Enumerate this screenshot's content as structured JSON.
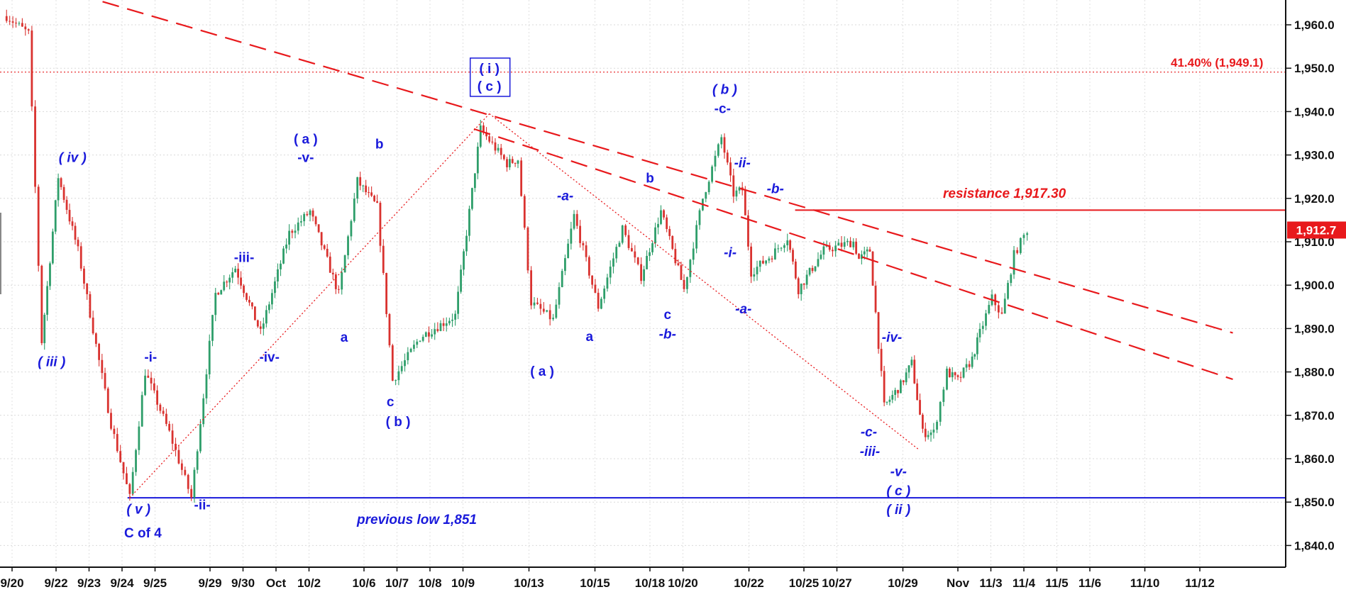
{
  "chart_data": {
    "type": "candlestick",
    "title": "",
    "xlabel": "",
    "ylabel": "",
    "ylim": [
      1835,
      1967
    ],
    "grid": true,
    "y_ticks": [
      1840,
      1850,
      1860,
      1870,
      1880,
      1890,
      1900,
      1910,
      1920,
      1930,
      1940,
      1950,
      1960
    ],
    "y_tick_labels": [
      "1,840.0",
      "1,850.0",
      "1,860.0",
      "1,870.0",
      "1,880.0",
      "1,890.0",
      "1,900.0",
      "1,910.0",
      "1,920.0",
      "1,930.0",
      "1,940.0",
      "1,950.0",
      "1,960.0"
    ],
    "x_ticks": [
      {
        "label": "9/20",
        "x": 0
      },
      {
        "label": "9/22",
        "x": 4
      },
      {
        "label": "9/23",
        "x": 7
      },
      {
        "label": "9/24",
        "x": 10
      },
      {
        "label": "9/25",
        "x": 13
      },
      {
        "label": "9/29",
        "x": 18
      },
      {
        "label": "9/30",
        "x": 21
      },
      {
        "label": "Oct",
        "x": 24
      },
      {
        "label": "10/2",
        "x": 27
      },
      {
        "label": "10/6",
        "x": 32
      },
      {
        "label": "10/7",
        "x": 35
      },
      {
        "label": "10/8",
        "x": 38
      },
      {
        "label": "10/9",
        "x": 41
      },
      {
        "label": "10/13",
        "x": 47
      },
      {
        "label": "10/15",
        "x": 53
      },
      {
        "label": "10/18",
        "x": 58
      },
      {
        "label": "10/20",
        "x": 61
      },
      {
        "label": "10/22",
        "x": 67
      },
      {
        "label": "10/25",
        "x": 72
      },
      {
        "label": "10/27",
        "x": 75
      },
      {
        "label": "10/29",
        "x": 81
      },
      {
        "label": "Nov",
        "x": 86
      },
      {
        "label": "11/3",
        "x": 89
      },
      {
        "label": "11/4",
        "x": 92
      },
      {
        "label": "11/5",
        "x": 95
      },
      {
        "label": "11/6",
        "x": 98
      },
      {
        "label": "11/10",
        "x": 103
      },
      {
        "label": "11/12",
        "x": 108
      }
    ],
    "x_range": [
      0,
      111
    ],
    "pivots": [
      {
        "x": -0.5,
        "price": 1962
      },
      {
        "x": 1.5,
        "price": 1958
      },
      {
        "x": 2.7,
        "price": 1887
      },
      {
        "x": 4.2,
        "price": 1925
      },
      {
        "x": 6.0,
        "price": 1908
      },
      {
        "x": 9.0,
        "price": 1868
      },
      {
        "x": 10.7,
        "price": 1851
      },
      {
        "x": 12.1,
        "price": 1880
      },
      {
        "x": 14.3,
        "price": 1866
      },
      {
        "x": 16.3,
        "price": 1851
      },
      {
        "x": 18.5,
        "price": 1898
      },
      {
        "x": 20.3,
        "price": 1904
      },
      {
        "x": 22.6,
        "price": 1889
      },
      {
        "x": 25.2,
        "price": 1912
      },
      {
        "x": 27.1,
        "price": 1917
      },
      {
        "x": 29.7,
        "price": 1898
      },
      {
        "x": 31.4,
        "price": 1924
      },
      {
        "x": 33.2,
        "price": 1918
      },
      {
        "x": 34.6,
        "price": 1878
      },
      {
        "x": 37.1,
        "price": 1888
      },
      {
        "x": 40.3,
        "price": 1893
      },
      {
        "x": 42.6,
        "price": 1936
      },
      {
        "x": 45.0,
        "price": 1928
      },
      {
        "x": 46.0,
        "price": 1929
      },
      {
        "x": 47.2,
        "price": 1896
      },
      {
        "x": 49.2,
        "price": 1892
      },
      {
        "x": 51.1,
        "price": 1916
      },
      {
        "x": 53.3,
        "price": 1895
      },
      {
        "x": 55.5,
        "price": 1913
      },
      {
        "x": 57.2,
        "price": 1902
      },
      {
        "x": 59.0,
        "price": 1917
      },
      {
        "x": 61.1,
        "price": 1899
      },
      {
        "x": 62.8,
        "price": 1920
      },
      {
        "x": 64.5,
        "price": 1934
      },
      {
        "x": 65.6,
        "price": 1921
      },
      {
        "x": 66.4,
        "price": 1922
      },
      {
        "x": 67.2,
        "price": 1903
      },
      {
        "x": 69.1,
        "price": 1907
      },
      {
        "x": 70.5,
        "price": 1911
      },
      {
        "x": 71.5,
        "price": 1899
      },
      {
        "x": 73.8,
        "price": 1908
      },
      {
        "x": 76.5,
        "price": 1910
      },
      {
        "x": 77.0,
        "price": 1906
      },
      {
        "x": 78.0,
        "price": 1908
      },
      {
        "x": 79.3,
        "price": 1872
      },
      {
        "x": 80.8,
        "price": 1877
      },
      {
        "x": 81.8,
        "price": 1882
      },
      {
        "x": 82.8,
        "price": 1866
      },
      {
        "x": 83.8,
        "price": 1866
      },
      {
        "x": 85.0,
        "price": 1880
      },
      {
        "x": 86.0,
        "price": 1878
      },
      {
        "x": 87.3,
        "price": 1883
      },
      {
        "x": 88.0,
        "price": 1889
      },
      {
        "x": 89.1,
        "price": 1897
      },
      {
        "x": 90.0,
        "price": 1893
      },
      {
        "x": 91.1,
        "price": 1907
      },
      {
        "x": 92.3,
        "price": 1912.7
      }
    ],
    "candle_step": 0.27,
    "overlays": {
      "resistance": {
        "label": "resistance 1,917.30",
        "value": 1917.3,
        "x_start": 71.2,
        "color": "#e8191c"
      },
      "previous_low": {
        "label": "previous low 1,851",
        "value": 1851,
        "x_start": 10.5,
        "color": "#1a1adb"
      },
      "fib": {
        "label": "41.40% (1,949.1)",
        "value": 1949.1,
        "color": "#e8191c"
      },
      "last_price": {
        "label": "1,912.7",
        "value": 1912.7,
        "color": "#e8191c"
      },
      "trendlines": [
        {
          "name": "outer-trendline",
          "x1": 6.0,
          "y1": 1967.0,
          "x2": 111.0,
          "y2": 1889.0,
          "color": "#e8191c",
          "dash": "dashed"
        },
        {
          "name": "inner-trendline",
          "x1": 42.0,
          "y1": 1936.0,
          "x2": 111.0,
          "y2": 1878.3,
          "color": "#e8191c",
          "dash": "dashed"
        },
        {
          "name": "up-dotted-line",
          "x1": 10.7,
          "y1": 1851.0,
          "x2": 43.4,
          "y2": 1939.5,
          "color": "#e8191c",
          "dash": "dotted"
        },
        {
          "name": "down-dotted-line",
          "x1": 43.4,
          "y1": 1939.5,
          "x2": 82.5,
          "y2": 1862.0,
          "color": "#e8191c",
          "dash": "dotted"
        }
      ]
    },
    "annotations": [
      {
        "text": "( iv )",
        "x": 5.5,
        "price": 1929.5,
        "italic": true
      },
      {
        "text": "( iii )",
        "x": 3.6,
        "price": 1882.5,
        "italic": true
      },
      {
        "text": "-i-",
        "x": 12.6,
        "price": 1883.5,
        "italic": false
      },
      {
        "text": "( v )",
        "x": 11.5,
        "price": 1848.5,
        "italic": true
      },
      {
        "text": "C of 4",
        "x": 11.9,
        "price": 1843,
        "italic": false
      },
      {
        "text": "-ii-",
        "x": 17.3,
        "price": 1849.5,
        "italic": false
      },
      {
        "text": "-iii-",
        "x": 21.1,
        "price": 1906.5,
        "italic": false
      },
      {
        "text": "-iv-",
        "x": 23.4,
        "price": 1883.5,
        "italic": false
      },
      {
        "text": "( a )",
        "x": 26.7,
        "price": 1933.8,
        "italic": false
      },
      {
        "text": "-v-",
        "x": 26.7,
        "price": 1929.5,
        "italic": false
      },
      {
        "text": "b",
        "x": 33.4,
        "price": 1932.6,
        "italic": false
      },
      {
        "text": "a",
        "x": 30.2,
        "price": 1888.1,
        "italic": false
      },
      {
        "text": "c",
        "x": 34.4,
        "price": 1873.2,
        "italic": false
      },
      {
        "text": "( b )",
        "x": 35.1,
        "price": 1868.7,
        "italic": false
      },
      {
        "text": "-a-",
        "x": 50.3,
        "price": 1920.7,
        "italic": true
      },
      {
        "text": "( a )",
        "x": 48.2,
        "price": 1880.3,
        "italic": false
      },
      {
        "text": "a",
        "x": 52.5,
        "price": 1888.3,
        "italic": false
      },
      {
        "text": "b",
        "x": 58.0,
        "price": 1924.8,
        "italic": false
      },
      {
        "text": "c",
        "x": 59.6,
        "price": 1893.3,
        "italic": false
      },
      {
        "text": "-b-",
        "x": 59.6,
        "price": 1888.8,
        "italic": true
      },
      {
        "text": "( b )",
        "x": 64.8,
        "price": 1945.2,
        "italic": true
      },
      {
        "text": "-c-",
        "x": 64.6,
        "price": 1940.8,
        "italic": false
      },
      {
        "text": "-ii-",
        "x": 66.4,
        "price": 1928.3,
        "italic": true
      },
      {
        "text": "-b-",
        "x": 69.4,
        "price": 1922.3,
        "italic": true
      },
      {
        "text": "-i-",
        "x": 65.3,
        "price": 1907.6,
        "italic": true
      },
      {
        "text": "-a-",
        "x": 66.5,
        "price": 1894.6,
        "italic": true
      },
      {
        "text": "-iv-",
        "x": 80.0,
        "price": 1888.1,
        "italic": true
      },
      {
        "text": "-c-",
        "x": 77.9,
        "price": 1866.3,
        "italic": true
      },
      {
        "text": "-iii-",
        "x": 78.0,
        "price": 1861.8,
        "italic": true
      },
      {
        "text": "-v-",
        "x": 80.6,
        "price": 1857.1,
        "italic": true
      },
      {
        "text": "( c )",
        "x": 80.6,
        "price": 1852.7,
        "italic": true
      },
      {
        "text": "( ii )",
        "x": 80.6,
        "price": 1848.4,
        "italic": true
      }
    ],
    "boxed_label": {
      "lines": [
        "( i )",
        "( c )"
      ],
      "x": 43.4,
      "price": 1944
    }
  }
}
